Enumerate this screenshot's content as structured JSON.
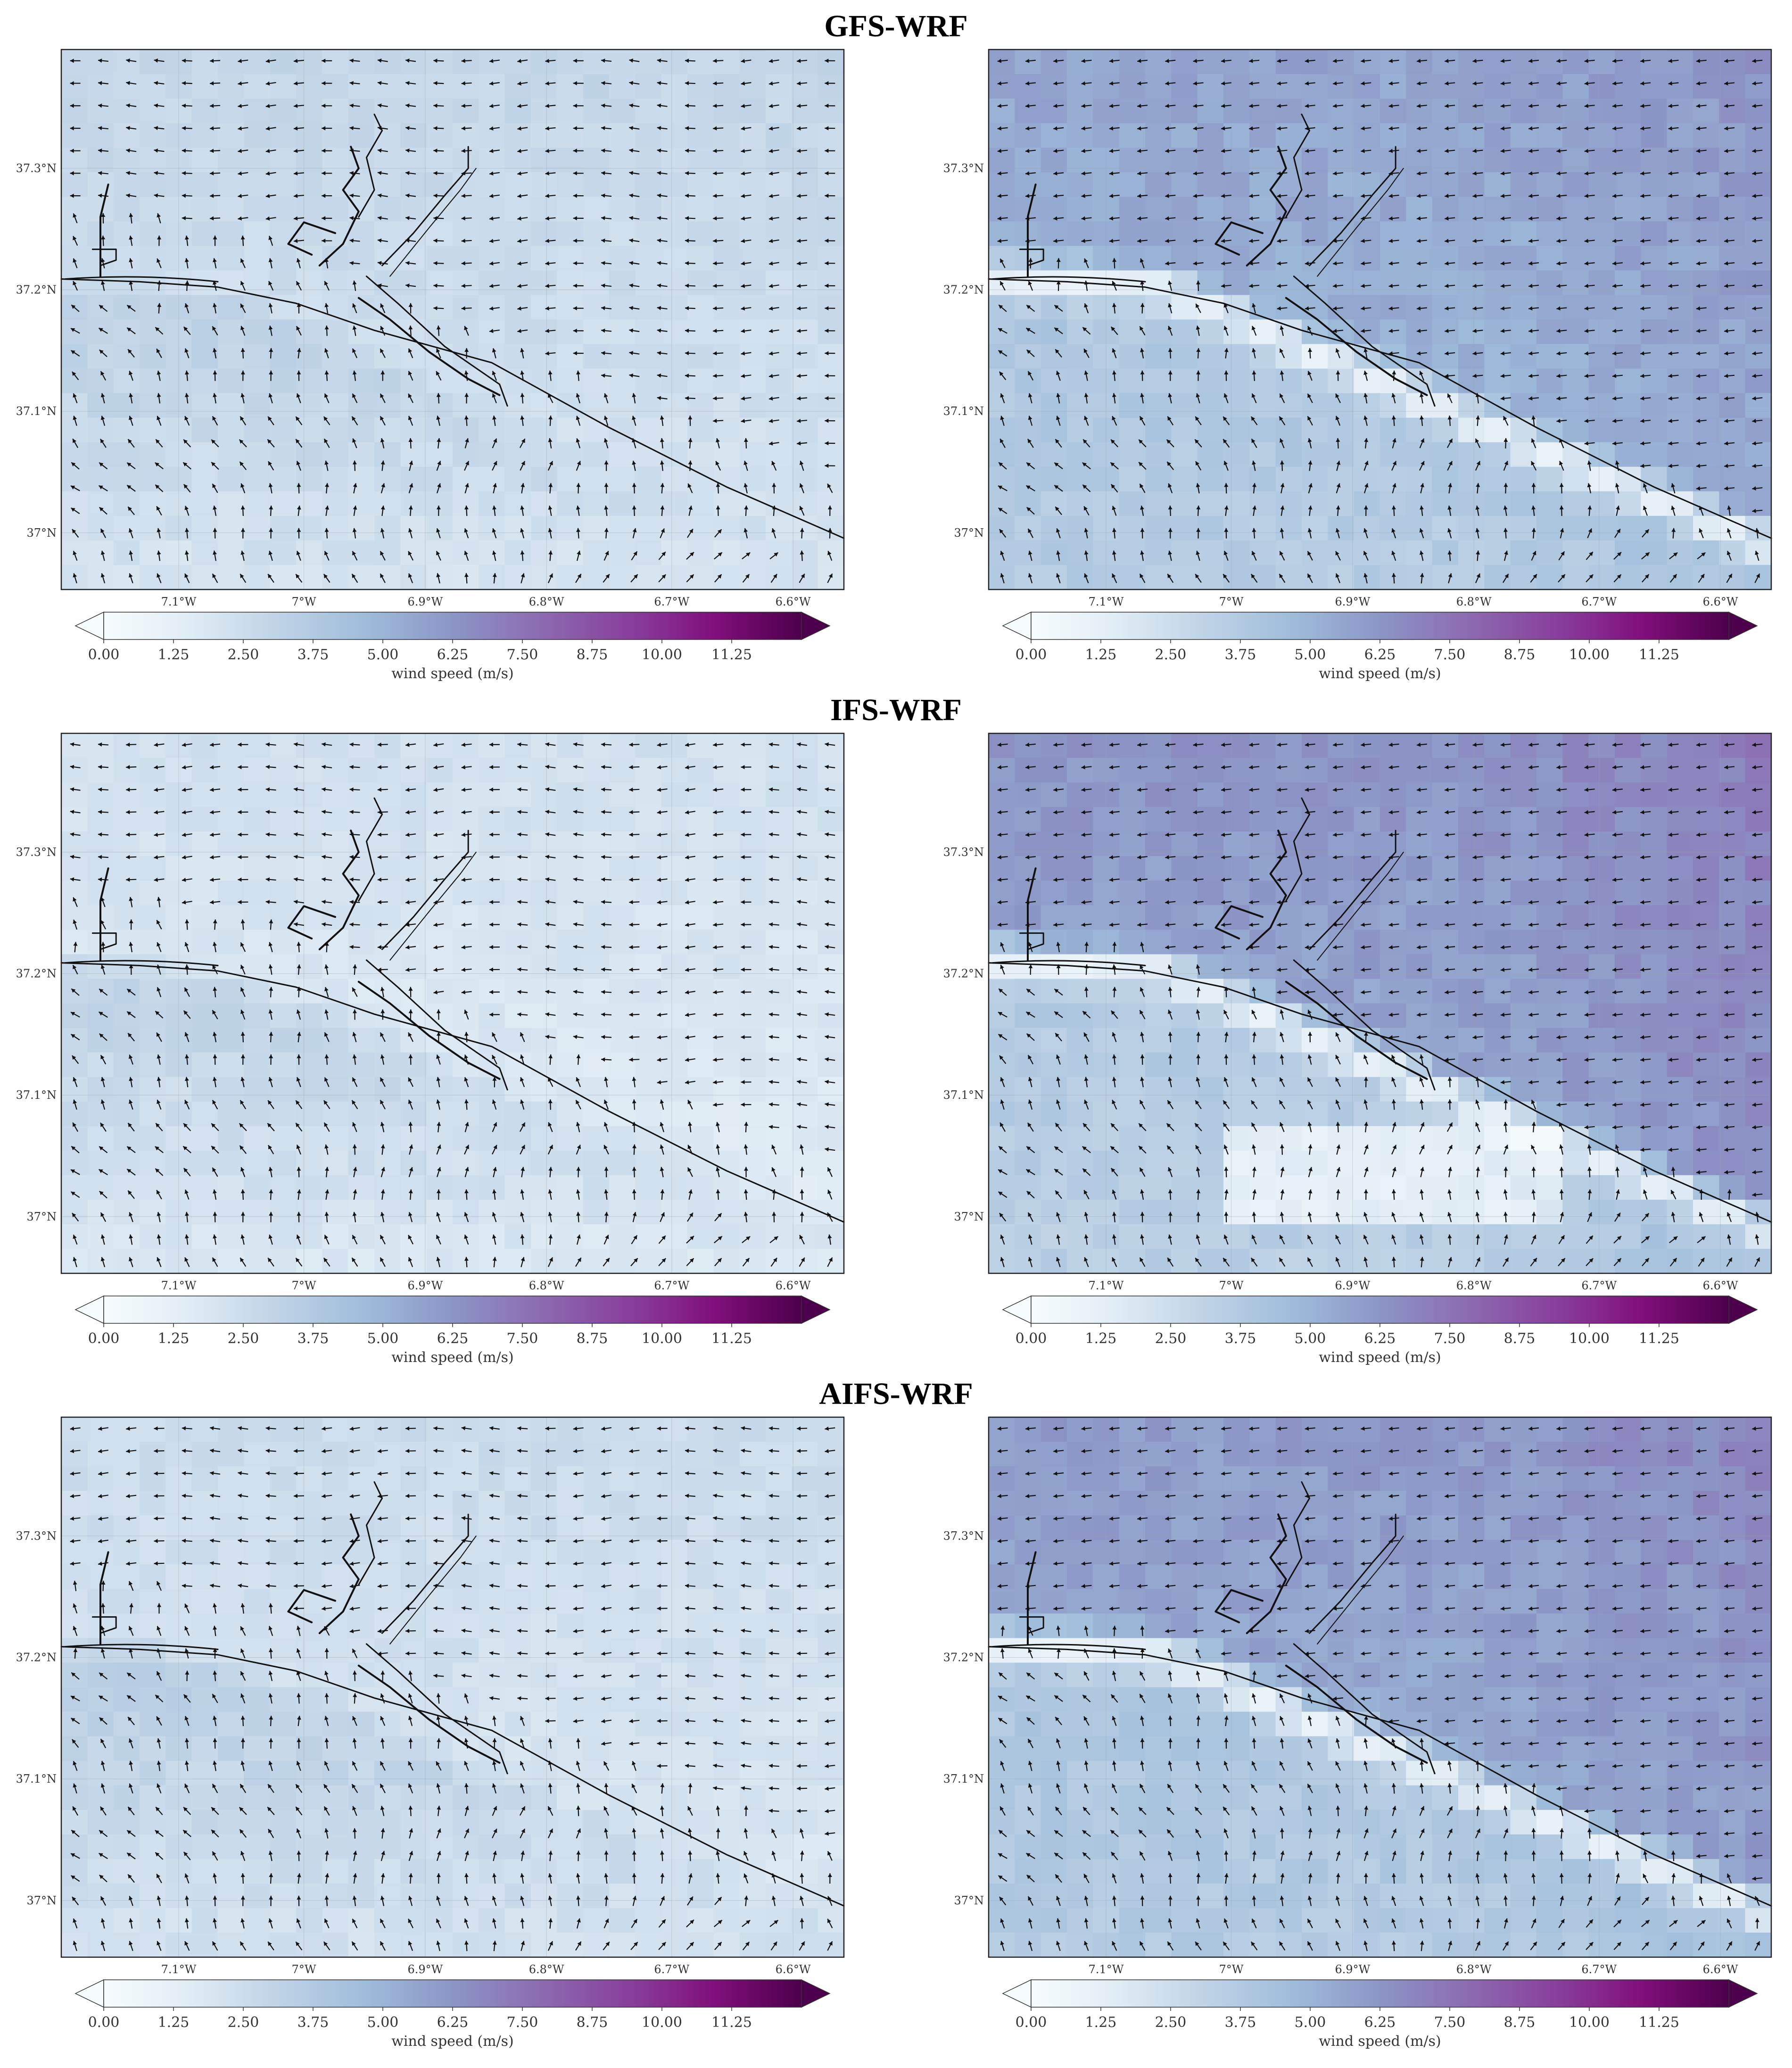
{
  "figure": {
    "row_titles": [
      "GFS-WRF",
      "IFS-WRF",
      "AIFS-WRF"
    ]
  },
  "colorbar": {
    "label": "wind speed (m/s)",
    "ticks": [
      "0.00",
      "1.25",
      "2.50",
      "3.75",
      "5.00",
      "6.25",
      "7.50",
      "8.75",
      "10.00",
      "11.25"
    ],
    "range": [
      0,
      12.5
    ],
    "extend": "both",
    "colormap_stops": [
      "#f7fcfd",
      "#e0ecf4",
      "#bfd3e6",
      "#9ebcda",
      "#8c96c6",
      "#8c6bb1",
      "#88419d",
      "#810f7c",
      "#4d004b"
    ]
  },
  "axes": {
    "x_ticks": [
      "7.1°W",
      "7°W",
      "6.9°W",
      "6.8°W",
      "6.7°W",
      "6.6°W"
    ],
    "y_ticks": [
      "37.3°N",
      "37.2°N",
      "37.1°N",
      "37°N"
    ]
  },
  "chart_data": [
    {
      "type": "heatmap",
      "title": "GFS-WRF",
      "panel": "left",
      "variable": "wind speed (m/s)",
      "vectors": "wind direction arrows",
      "xlim": [
        "7.2°W",
        "6.55°W"
      ],
      "ylim": [
        "36.95°N",
        "37.4°N"
      ],
      "speed_range_est": [
        1.0,
        4.5
      ]
    },
    {
      "type": "heatmap",
      "title": "GFS-WRF",
      "panel": "right",
      "variable": "wind speed (m/s)",
      "vectors": "wind direction arrows",
      "xlim": [
        "7.2°W",
        "6.55°W"
      ],
      "ylim": [
        "36.95°N",
        "37.4°N"
      ],
      "speed_range_est": [
        0.5,
        6.5
      ]
    },
    {
      "type": "heatmap",
      "title": "IFS-WRF",
      "panel": "left",
      "variable": "wind speed (m/s)",
      "vectors": "wind direction arrows",
      "xlim": [
        "7.2°W",
        "6.55°W"
      ],
      "ylim": [
        "36.95°N",
        "37.4°N"
      ],
      "speed_range_est": [
        0.5,
        4.5
      ]
    },
    {
      "type": "heatmap",
      "title": "IFS-WRF",
      "panel": "right",
      "variable": "wind speed (m/s)",
      "vectors": "wind direction arrows",
      "xlim": [
        "7.2°W",
        "6.55°W"
      ],
      "ylim": [
        "36.95°N",
        "37.4°N"
      ],
      "speed_range_est": [
        0.5,
        7.0
      ]
    },
    {
      "type": "heatmap",
      "title": "AIFS-WRF",
      "panel": "left",
      "variable": "wind speed (m/s)",
      "vectors": "wind direction arrows",
      "xlim": [
        "7.2°W",
        "6.55°W"
      ],
      "ylim": [
        "36.95°N",
        "37.4°N"
      ],
      "speed_range_est": [
        0.5,
        4.5
      ]
    },
    {
      "type": "heatmap",
      "title": "AIFS-WRF",
      "panel": "right",
      "variable": "wind speed (m/s)",
      "vectors": "wind direction arrows",
      "xlim": [
        "7.2°W",
        "6.55°W"
      ],
      "ylim": [
        "36.95°N",
        "37.4°N"
      ],
      "speed_range_est": [
        0.5,
        6.5
      ]
    }
  ]
}
